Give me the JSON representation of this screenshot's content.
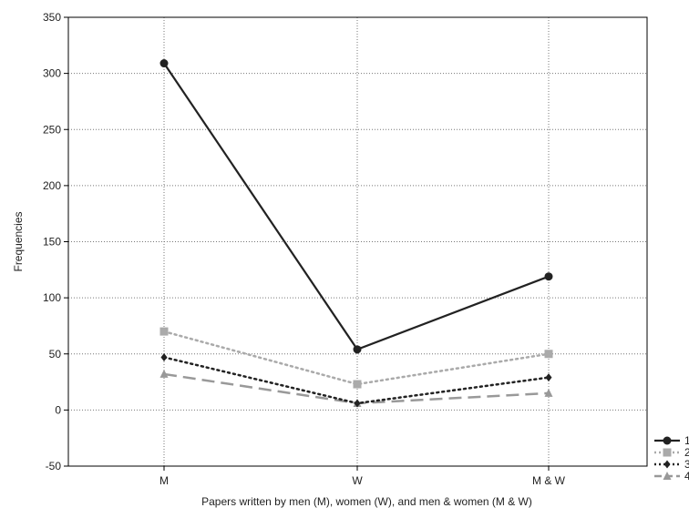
{
  "chart_data": {
    "type": "line",
    "categories": [
      "M",
      "W",
      "M & W"
    ],
    "xlabel": "Papers written by men (M), women (W), and men & women (M & W)",
    "ylabel": "Frequencies",
    "ylim": [
      -50,
      350
    ],
    "yticks": [
      -50,
      0,
      50,
      100,
      150,
      200,
      250,
      300,
      350
    ],
    "grid": true,
    "legend_position": "right",
    "series": [
      {
        "name": "1",
        "values": [
          309,
          54,
          119
        ],
        "color": "#222222",
        "marker": "circle",
        "dash": "solid"
      },
      {
        "name": "2",
        "values": [
          70,
          23,
          50
        ],
        "color": "#aaaaaa",
        "marker": "square",
        "dash": "dotted"
      },
      {
        "name": "3",
        "values": [
          47,
          6,
          29
        ],
        "color": "#222222",
        "marker": "diamond",
        "dash": "dotted"
      },
      {
        "name": "4",
        "values": [
          32,
          6,
          15
        ],
        "color": "#999999",
        "marker": "triangle",
        "dash": "dashed"
      }
    ]
  }
}
